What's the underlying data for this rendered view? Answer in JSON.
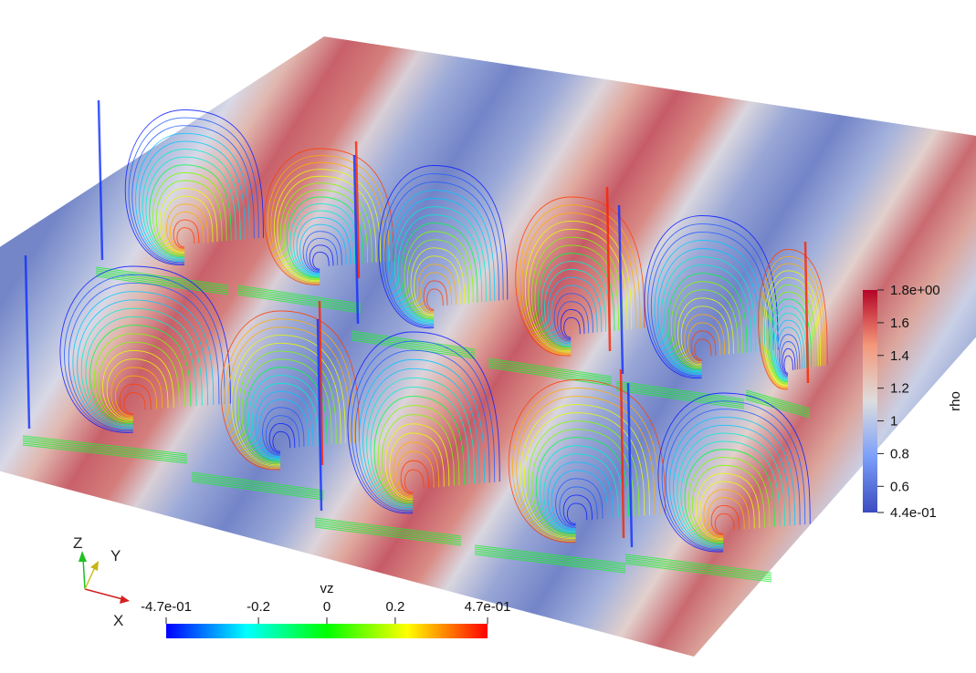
{
  "scene": {
    "colors": {
      "background": "#ffffff",
      "rho_low": "#3b4cc0",
      "rho_mid": "#dddddd",
      "rho_high": "#b40426"
    }
  },
  "rho_colorbar": {
    "title": "rho",
    "range": [
      0.44,
      1.8
    ],
    "ticks": [
      {
        "value": 1.8,
        "label": "1.8e+00"
      },
      {
        "value": 1.6,
        "label": "1.6"
      },
      {
        "value": 1.4,
        "label": "1.4"
      },
      {
        "value": 1.2,
        "label": "1.2"
      },
      {
        "value": 1.0,
        "label": "1"
      },
      {
        "value": 0.8,
        "label": "0.8"
      },
      {
        "value": 0.6,
        "label": "0.6"
      },
      {
        "value": 0.44,
        "label": "4.4e-01"
      }
    ]
  },
  "vz_colorbar": {
    "title": "vz",
    "range": [
      -0.47,
      0.47
    ],
    "ticks": [
      {
        "value": -0.47,
        "label": "-4.7e-01"
      },
      {
        "value": -0.2,
        "label": "-0.2"
      },
      {
        "value": 0,
        "label": "0"
      },
      {
        "value": 0.2,
        "label": "0.2"
      },
      {
        "value": 0.47,
        "label": "4.7e-01"
      }
    ]
  },
  "orientation_axes": {
    "x_label": "X",
    "y_label": "Y",
    "z_label": "Z"
  }
}
